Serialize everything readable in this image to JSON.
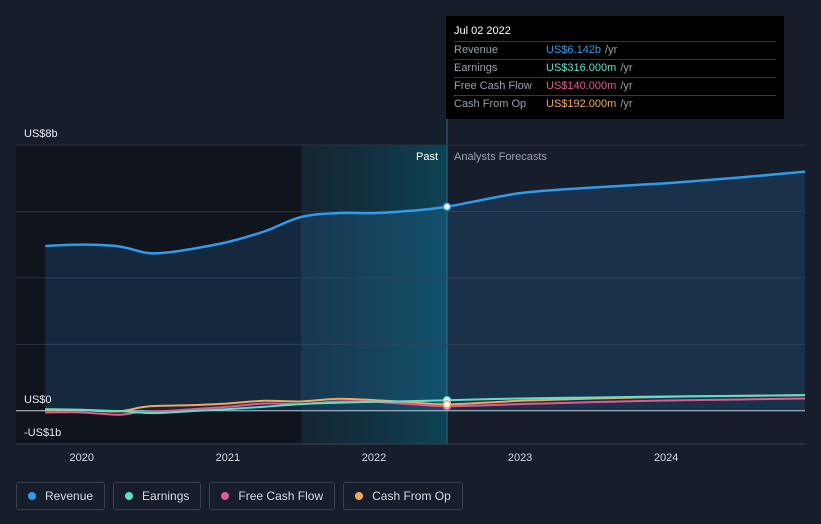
{
  "tooltip": {
    "date": "Jul 02 2022",
    "rows": [
      {
        "label": "Revenue",
        "value": "US$6.142b",
        "unit": "/yr",
        "color": "#2f9bea"
      },
      {
        "label": "Earnings",
        "value": "US$316.000m",
        "unit": "/yr",
        "color": "#5ce0c8"
      },
      {
        "label": "Free Cash Flow",
        "value": "US$140.000m",
        "unit": "/yr",
        "color": "#e05a94"
      },
      {
        "label": "Cash From Op",
        "value": "US$192.000m",
        "unit": "/yr",
        "color": "#f2a95c"
      }
    ]
  },
  "legend": [
    {
      "label": "Revenue",
      "color": "#2f9bea"
    },
    {
      "label": "Earnings",
      "color": "#5ce0c8"
    },
    {
      "label": "Free Cash Flow",
      "color": "#e05a94"
    },
    {
      "label": "Cash From Op",
      "color": "#f2a95c"
    }
  ],
  "chart_data": {
    "type": "line",
    "y_tick_labels": [
      "US$8b",
      "US$0",
      "-US$1b"
    ],
    "x_tick_labels": [
      "2020",
      "2021",
      "2022",
      "2023",
      "2024"
    ],
    "past_label": "Past",
    "forecast_label": "Analysts Forecasts",
    "ylim": [
      -1,
      8
    ],
    "xlim": [
      2019.55,
      2024.95
    ],
    "past_shade_start": 2021.5,
    "divider_x": 2022.5,
    "highlight_x": 2022.5,
    "series": [
      {
        "name": "Revenue",
        "color": "#2f9bea",
        "fill": true,
        "points": [
          [
            2019.75,
            4.96
          ],
          [
            2020.0,
            5.0
          ],
          [
            2020.25,
            4.95
          ],
          [
            2020.45,
            4.75
          ],
          [
            2020.6,
            4.77
          ],
          [
            2020.75,
            4.87
          ],
          [
            2021.0,
            5.08
          ],
          [
            2021.25,
            5.4
          ],
          [
            2021.5,
            5.83
          ],
          [
            2021.75,
            5.95
          ],
          [
            2022.0,
            5.95
          ],
          [
            2022.25,
            6.02
          ],
          [
            2022.5,
            6.142
          ],
          [
            2023.0,
            6.55
          ],
          [
            2023.5,
            6.72
          ],
          [
            2024.0,
            6.85
          ],
          [
            2024.5,
            7.02
          ],
          [
            2024.95,
            7.2
          ]
        ]
      },
      {
        "name": "Earnings",
        "color": "#5ce0c8",
        "fill": false,
        "points": [
          [
            2019.75,
            0.05
          ],
          [
            2020.0,
            0.03
          ],
          [
            2020.25,
            -0.01
          ],
          [
            2020.5,
            -0.07
          ],
          [
            2020.75,
            -0.01
          ],
          [
            2021.0,
            0.05
          ],
          [
            2021.25,
            0.12
          ],
          [
            2021.5,
            0.2
          ],
          [
            2021.75,
            0.24
          ],
          [
            2022.0,
            0.27
          ],
          [
            2022.25,
            0.29
          ],
          [
            2022.5,
            0.316
          ],
          [
            2023.0,
            0.37
          ],
          [
            2023.5,
            0.4
          ],
          [
            2024.0,
            0.43
          ],
          [
            2024.5,
            0.45
          ],
          [
            2024.95,
            0.47
          ]
        ]
      },
      {
        "name": "Free Cash Flow",
        "color": "#e05a94",
        "fill": false,
        "points": [
          [
            2019.75,
            -0.05
          ],
          [
            2020.0,
            -0.05
          ],
          [
            2020.25,
            -0.12
          ],
          [
            2020.4,
            -0.04
          ],
          [
            2020.6,
            0.0
          ],
          [
            2020.8,
            0.06
          ],
          [
            2021.0,
            0.12
          ],
          [
            2021.25,
            0.22
          ],
          [
            2021.5,
            0.2
          ],
          [
            2021.75,
            0.28
          ],
          [
            2022.0,
            0.27
          ],
          [
            2022.25,
            0.2
          ],
          [
            2022.5,
            0.14
          ],
          [
            2023.0,
            0.2
          ],
          [
            2023.5,
            0.26
          ],
          [
            2024.0,
            0.31
          ],
          [
            2024.5,
            0.34
          ],
          [
            2024.95,
            0.37
          ]
        ]
      },
      {
        "name": "Cash From Op",
        "color": "#f2a95c",
        "fill": false,
        "points": [
          [
            2019.75,
            0.03
          ],
          [
            2020.0,
            0.02
          ],
          [
            2020.25,
            -0.02
          ],
          [
            2020.45,
            0.13
          ],
          [
            2020.75,
            0.17
          ],
          [
            2021.0,
            0.22
          ],
          [
            2021.25,
            0.3
          ],
          [
            2021.5,
            0.28
          ],
          [
            2021.75,
            0.36
          ],
          [
            2022.0,
            0.32
          ],
          [
            2022.25,
            0.26
          ],
          [
            2022.5,
            0.192
          ],
          [
            2023.0,
            0.3
          ],
          [
            2023.5,
            0.37
          ],
          [
            2024.0,
            0.42
          ],
          [
            2024.5,
            0.45
          ],
          [
            2024.95,
            0.47
          ]
        ]
      }
    ]
  }
}
